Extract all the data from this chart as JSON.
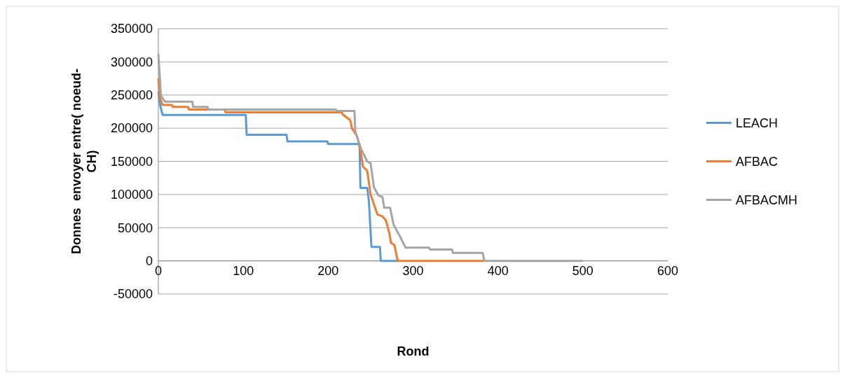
{
  "chart_data": {
    "type": "line",
    "xlabel": "Rond",
    "ylabel": "Donnes  envoyer entre( noeud-CH)",
    "xlim": [
      0,
      600
    ],
    "xticks": [
      0,
      100,
      200,
      300,
      400,
      500,
      600
    ],
    "ylim": [
      -50000,
      350000
    ],
    "yticks": [
      -50000,
      0,
      50000,
      100000,
      150000,
      200000,
      250000,
      300000,
      350000
    ],
    "grid": "y",
    "legend": "right",
    "line_style": "solid",
    "marker": "none",
    "series": [
      {
        "name": "LEACH",
        "color": "#5b9bd5",
        "x": [
          0,
          2,
          5,
          103,
          104,
          151,
          152,
          199,
          200,
          237,
          238,
          246,
          248,
          251,
          261,
          262,
          282
        ],
        "values": [
          255000,
          235000,
          220000,
          220000,
          190000,
          190000,
          180000,
          180000,
          176000,
          176000,
          110000,
          110000,
          90000,
          21000,
          21000,
          0,
          0
        ]
      },
      {
        "name": "AFBAC",
        "color": "#ed7d31",
        "x": [
          0,
          2,
          5,
          16,
          17,
          35,
          36,
          78,
          79,
          207,
          216,
          217,
          226,
          228,
          234,
          238,
          241,
          246,
          250,
          254,
          258,
          264,
          268,
          272,
          274,
          278,
          282,
          383
        ],
        "values": [
          275000,
          245000,
          235000,
          235000,
          232000,
          232000,
          228000,
          228000,
          224000,
          224000,
          224000,
          221000,
          212000,
          200000,
          188000,
          167000,
          142000,
          136000,
          100000,
          85000,
          70000,
          67000,
          61000,
          42000,
          27000,
          24000,
          0,
          0
        ]
      },
      {
        "name": "AFBACMH",
        "color": "#a5a5a5",
        "x": [
          0,
          3,
          5,
          8,
          40,
          41,
          58,
          59,
          209,
          210,
          231,
          232,
          239,
          246,
          250,
          254,
          259,
          264,
          266,
          273,
          277,
          281,
          285,
          291,
          319,
          320,
          346,
          347,
          382,
          384,
          500
        ],
        "values": [
          312000,
          250000,
          245000,
          240000,
          240000,
          232000,
          232000,
          228000,
          228000,
          226000,
          226000,
          195000,
          168000,
          150000,
          147000,
          111000,
          99000,
          96000,
          80000,
          80000,
          55000,
          45000,
          36000,
          20000,
          20000,
          17000,
          17000,
          12000,
          12000,
          0,
          0
        ]
      }
    ]
  }
}
